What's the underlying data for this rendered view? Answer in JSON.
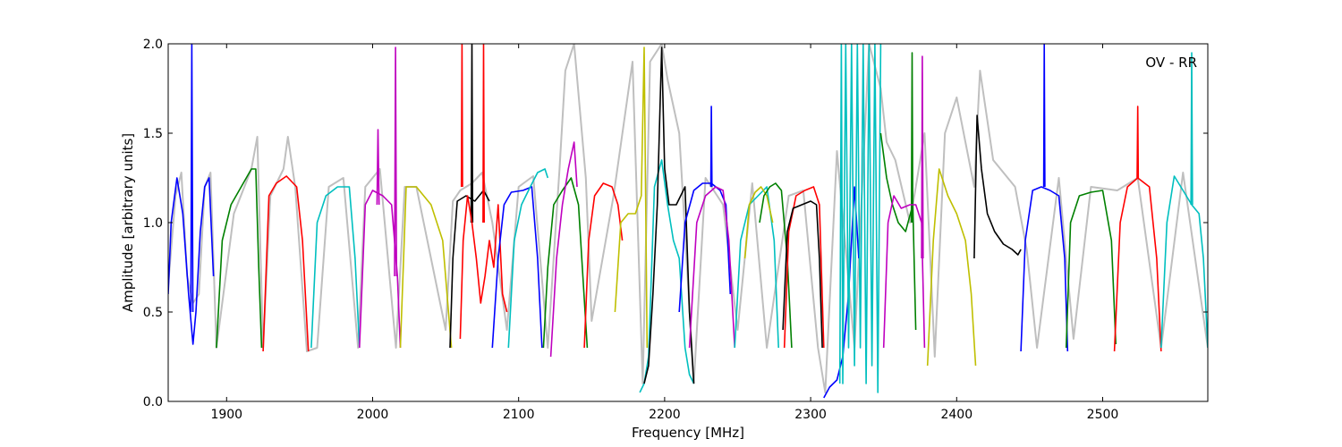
{
  "chart_data": {
    "type": "line",
    "title": "",
    "xlabel": "Frequency [MHz]",
    "ylabel": "Amplitude [arbitrary units]",
    "annotation": "OV - RR",
    "xlim": [
      1860,
      2572
    ],
    "ylim": [
      0.0,
      2.0
    ],
    "grid": false,
    "legend": "none",
    "x_ticks": [
      1900,
      2000,
      2100,
      2200,
      2300,
      2400,
      2500
    ],
    "y_ticks": [
      0.0,
      0.5,
      1.0,
      1.5,
      2.0
    ],
    "x_tick_labels": [
      "1900",
      "2000",
      "2100",
      "2200",
      "2300",
      "2400",
      "2500"
    ],
    "y_tick_labels": [
      "0.0",
      "0.5",
      "1.0",
      "1.5",
      "2.0"
    ],
    "background_trace": {
      "color": "#bfbfbf",
      "x": [
        1860,
        1865,
        1869,
        1873,
        1877,
        1881,
        1885,
        1889,
        1893,
        1905,
        1917,
        1921,
        1925,
        1930,
        1939,
        1942,
        1947,
        1955,
        1962,
        1970,
        1980,
        1990,
        1995,
        2005,
        2016,
        2022,
        2030,
        2050,
        2055,
        2060,
        2068,
        2075,
        2082,
        2092,
        2100,
        2110,
        2120,
        2128,
        2132,
        2138,
        2146,
        2150,
        2165,
        2178,
        2185,
        2190,
        2198,
        2202,
        2210,
        2220,
        2228,
        2240,
        2250,
        2260,
        2270,
        2285,
        2295,
        2305,
        2310,
        2318,
        2330,
        2340,
        2348,
        2352,
        2358,
        2368,
        2378,
        2385,
        2392,
        2400,
        2412,
        2416,
        2425,
        2440,
        2448,
        2455,
        2470,
        2480,
        2492,
        2510,
        2524,
        2540,
        2555,
        2572
      ],
      "y": [
        0.65,
        1.15,
        1.28,
        0.7,
        0.55,
        0.6,
        1.2,
        1.28,
        0.3,
        1.05,
        1.3,
        1.48,
        0.3,
        1.15,
        1.3,
        1.48,
        1.2,
        0.28,
        0.3,
        1.2,
        1.25,
        0.3,
        1.2,
        1.3,
        0.3,
        1.2,
        1.2,
        0.4,
        1.12,
        1.18,
        1.22,
        1.28,
        1.0,
        0.4,
        1.2,
        1.26,
        0.3,
        1.3,
        1.85,
        2.0,
        1.25,
        0.45,
        1.15,
        1.9,
        0.1,
        1.9,
        2.0,
        1.8,
        1.5,
        0.1,
        1.25,
        1.1,
        0.4,
        1.22,
        0.3,
        1.15,
        1.18,
        0.3,
        0.05,
        1.4,
        0.3,
        2.0,
        1.75,
        1.45,
        1.35,
        1.0,
        1.5,
        0.25,
        1.5,
        1.7,
        1.2,
        1.85,
        1.35,
        1.2,
        0.85,
        0.3,
        1.25,
        0.35,
        1.2,
        1.18,
        1.25,
        0.3,
        1.28,
        0.3
      ]
    },
    "series": [
      {
        "color": "#0000ff",
        "x": [
          1860,
          1862,
          1866,
          1870,
          1874,
          1877,
          1879,
          1882,
          1885,
          1888,
          1891
        ],
        "y": [
          0.6,
          1.0,
          1.25,
          1.05,
          0.6,
          0.32,
          0.5,
          0.95,
          1.2,
          1.25,
          0.7
        ]
      },
      {
        "color": "#0000ff",
        "x": [
          1875.5,
          1876.2,
          1876.9
        ],
        "y": [
          0.5,
          2.0,
          0.5
        ]
      },
      {
        "color": "#008000",
        "x": [
          1893,
          1897,
          1903,
          1910,
          1917,
          1920,
          1922,
          1924
        ],
        "y": [
          0.3,
          0.9,
          1.1,
          1.2,
          1.3,
          1.3,
          0.75,
          0.3
        ]
      },
      {
        "color": "#ff0000",
        "x": [
          1925,
          1929,
          1934,
          1941,
          1948,
          1952,
          1956
        ],
        "y": [
          0.28,
          1.15,
          1.22,
          1.26,
          1.2,
          0.9,
          0.28
        ]
      },
      {
        "color": "#00bfbf",
        "x": [
          1958,
          1962,
          1968,
          1976,
          1984,
          1988,
          1991
        ],
        "y": [
          0.3,
          1.0,
          1.15,
          1.2,
          1.2,
          0.8,
          0.3
        ]
      },
      {
        "color": "#bf00bf",
        "x": [
          1991,
          1995,
          2000,
          2007,
          2013,
          2017,
          2019
        ],
        "y": [
          0.3,
          1.1,
          1.18,
          1.15,
          1.1,
          0.7,
          0.3
        ]
      },
      {
        "color": "#bf00bf",
        "x": [
          2003,
          2003.7,
          2004.4
        ],
        "y": [
          1.1,
          1.52,
          1.1
        ]
      },
      {
        "color": "#bf00bf",
        "x": [
          2015,
          2015.7,
          2016.4
        ],
        "y": [
          0.7,
          1.98,
          0.7
        ]
      },
      {
        "color": "#bfbf00",
        "x": [
          2019,
          2023,
          2030,
          2040,
          2048,
          2052,
          2054
        ],
        "y": [
          0.3,
          1.2,
          1.2,
          1.1,
          0.9,
          0.5,
          0.3
        ]
      },
      {
        "color": "#000000",
        "x": [
          2053,
          2055,
          2058,
          2064,
          2070,
          2076,
          2080
        ],
        "y": [
          0.3,
          0.8,
          1.12,
          1.15,
          1.12,
          1.18,
          1.12
        ]
      },
      {
        "color": "#000000",
        "x": [
          2067.5,
          2068,
          2068.5
        ],
        "y": [
          1.0,
          2.0,
          1.0
        ]
      },
      {
        "color": "#ff0000",
        "x": [
          2060,
          2062,
          2065,
          2068,
          2071,
          2074,
          2077,
          2080,
          2083,
          2086,
          2089,
          2092
        ],
        "y": [
          0.35,
          0.9,
          1.15,
          1.0,
          0.8,
          0.55,
          0.7,
          0.9,
          0.75,
          1.1,
          0.6,
          0.5
        ]
      },
      {
        "color": "#ff0000",
        "x": [
          2060.8,
          2061.2,
          2061.6
        ],
        "y": [
          1.2,
          2.0,
          1.2
        ]
      },
      {
        "color": "#ff0000",
        "x": [
          2075.6,
          2076,
          2076.4
        ],
        "y": [
          1.0,
          2.0,
          1.0
        ]
      },
      {
        "color": "#0000ff",
        "x": [
          2082,
          2086,
          2090,
          2095,
          2103,
          2109,
          2113,
          2116
        ],
        "y": [
          0.3,
          0.8,
          1.1,
          1.17,
          1.18,
          1.2,
          0.8,
          0.3
        ]
      },
      {
        "color": "#00bfbf",
        "x": [
          2093,
          2097,
          2102,
          2108,
          2113,
          2118,
          2120
        ],
        "y": [
          0.3,
          0.9,
          1.1,
          1.2,
          1.28,
          1.3,
          1.25
        ]
      },
      {
        "color": "#008000",
        "x": [
          2117,
          2120,
          2124,
          2130,
          2136,
          2141,
          2144,
          2147
        ],
        "y": [
          0.3,
          0.75,
          1.1,
          1.18,
          1.25,
          1.1,
          0.7,
          0.3
        ]
      },
      {
        "color": "#bf00bf",
        "x": [
          2122,
          2126,
          2130,
          2134,
          2138,
          2140
        ],
        "y": [
          0.25,
          0.8,
          1.1,
          1.3,
          1.45,
          1.2
        ]
      },
      {
        "color": "#ff0000",
        "x": [
          2145,
          2148,
          2152,
          2158,
          2164,
          2168,
          2171
        ],
        "y": [
          0.3,
          0.9,
          1.15,
          1.22,
          1.2,
          1.1,
          0.9
        ]
      },
      {
        "color": "#bfbf00",
        "x": [
          2166,
          2170,
          2175,
          2180,
          2184,
          2186,
          2188
        ],
        "y": [
          0.5,
          1.0,
          1.05,
          1.05,
          1.15,
          1.98,
          0.3
        ]
      },
      {
        "color": "#00bfbf",
        "x": [
          2183,
          2186,
          2189,
          2193,
          2198,
          2202,
          2206,
          2210,
          2214,
          2217,
          2220
        ],
        "y": [
          0.05,
          0.1,
          0.25,
          1.2,
          1.35,
          1.1,
          0.9,
          0.8,
          0.3,
          0.15,
          0.1
        ]
      },
      {
        "color": "#000000",
        "x": [
          2186,
          2189,
          2192,
          2195,
          2198,
          2200,
          2203,
          2208,
          2214,
          2217,
          2220
        ],
        "y": [
          0.1,
          0.2,
          0.6,
          1.1,
          1.98,
          1.3,
          1.1,
          1.1,
          1.2,
          0.5,
          0.1
        ]
      },
      {
        "color": "#0000ff",
        "x": [
          2210,
          2214,
          2220,
          2226,
          2232,
          2238,
          2242,
          2245
        ],
        "y": [
          0.5,
          1.0,
          1.18,
          1.22,
          1.22,
          1.18,
          1.1,
          0.6
        ]
      },
      {
        "color": "#0000ff",
        "x": [
          2231.6,
          2232,
          2232.4
        ],
        "y": [
          1.2,
          1.65,
          1.2
        ]
      },
      {
        "color": "#bf00bf",
        "x": [
          2217,
          2222,
          2228,
          2235,
          2240,
          2244,
          2248
        ],
        "y": [
          0.3,
          1.0,
          1.15,
          1.2,
          1.18,
          0.9,
          0.3
        ]
      },
      {
        "color": "#00bfbf",
        "x": [
          2248,
          2252,
          2258,
          2264,
          2270,
          2275,
          2278
        ],
        "y": [
          0.3,
          0.9,
          1.1,
          1.15,
          1.2,
          0.9,
          0.3
        ]
      },
      {
        "color": "#bfbf00",
        "x": [
          2255,
          2258,
          2262,
          2266,
          2270,
          2274
        ],
        "y": [
          0.8,
          1.1,
          1.17,
          1.2,
          1.15,
          1.0
        ]
      },
      {
        "color": "#008000",
        "x": [
          2265,
          2268,
          2272,
          2276,
          2280,
          2284,
          2287
        ],
        "y": [
          1.0,
          1.15,
          1.2,
          1.22,
          1.18,
          0.8,
          0.3
        ]
      },
      {
        "color": "#ff0000",
        "x": [
          2282,
          2285,
          2290,
          2296,
          2302,
          2306,
          2309
        ],
        "y": [
          0.3,
          0.95,
          1.15,
          1.18,
          1.2,
          1.1,
          0.3
        ]
      },
      {
        "color": "#000000",
        "x": [
          2281,
          2284,
          2288,
          2294,
          2300,
          2304,
          2306,
          2308
        ],
        "y": [
          0.4,
          0.95,
          1.08,
          1.1,
          1.12,
          1.1,
          0.8,
          0.3
        ]
      },
      {
        "color": "#0000ff",
        "x": [
          2309,
          2313,
          2318,
          2322,
          2326,
          2330,
          2333
        ],
        "y": [
          0.02,
          0.08,
          0.12,
          0.25,
          0.6,
          1.2,
          0.8
        ]
      },
      {
        "color": "#00bfbf",
        "x": [
          2320,
          2321,
          2322,
          2324,
          2326,
          2328,
          2330,
          2332,
          2334,
          2336,
          2338,
          2340,
          2342,
          2344,
          2346,
          2348
        ],
        "y": [
          0.1,
          2.0,
          0.1,
          2.0,
          0.3,
          2.0,
          0.2,
          2.0,
          0.3,
          2.0,
          0.1,
          2.0,
          0.2,
          2.0,
          0.05,
          2.0
        ]
      },
      {
        "color": "#008000",
        "x": [
          2348,
          2352,
          2356,
          2360,
          2365,
          2370,
          2372
        ],
        "y": [
          1.5,
          1.25,
          1.1,
          1.0,
          0.95,
          1.1,
          0.4
        ]
      },
      {
        "color": "#008000",
        "x": [
          2369,
          2369.5,
          2370
        ],
        "y": [
          1.0,
          1.95,
          1.0
        ]
      },
      {
        "color": "#bf00bf",
        "x": [
          2350,
          2353,
          2357,
          2362,
          2368,
          2372,
          2376,
          2378
        ],
        "y": [
          0.3,
          1.0,
          1.15,
          1.08,
          1.1,
          1.1,
          1.0,
          0.3
        ]
      },
      {
        "color": "#bf00bf",
        "x": [
          2376,
          2376.5,
          2377
        ],
        "y": [
          0.8,
          1.93,
          0.8
        ]
      },
      {
        "color": "#bfbf00",
        "x": [
          2380,
          2384,
          2388,
          2394,
          2400,
          2406,
          2410,
          2413
        ],
        "y": [
          0.2,
          0.9,
          1.3,
          1.15,
          1.05,
          0.9,
          0.6,
          0.2
        ]
      },
      {
        "color": "#000000",
        "x": [
          2412,
          2414,
          2417,
          2421,
          2426,
          2432,
          2438,
          2442,
          2444
        ],
        "y": [
          0.8,
          1.6,
          1.3,
          1.05,
          0.95,
          0.88,
          0.85,
          0.82,
          0.85
        ]
      },
      {
        "color": "#0000ff",
        "x": [
          2444,
          2447,
          2452,
          2458,
          2464,
          2470,
          2474,
          2476
        ],
        "y": [
          0.28,
          0.9,
          1.18,
          1.2,
          1.18,
          1.15,
          0.8,
          0.28
        ]
      },
      {
        "color": "#0000ff",
        "x": [
          2459.6,
          2460,
          2460.4
        ],
        "y": [
          1.2,
          2.0,
          1.2
        ]
      },
      {
        "color": "#008000",
        "x": [
          2475,
          2478,
          2484,
          2492,
          2500,
          2506,
          2509
        ],
        "y": [
          0.3,
          1.0,
          1.15,
          1.17,
          1.18,
          0.9,
          0.32
        ]
      },
      {
        "color": "#ff0000",
        "x": [
          2508,
          2512,
          2517,
          2524,
          2532,
          2537,
          2540
        ],
        "y": [
          0.28,
          1.0,
          1.2,
          1.25,
          1.2,
          0.8,
          0.28
        ]
      },
      {
        "color": "#ff0000",
        "x": [
          2523.6,
          2524,
          2524.4
        ],
        "y": [
          1.25,
          1.65,
          1.25
        ]
      },
      {
        "color": "#00bfbf",
        "x": [
          2540,
          2544,
          2549,
          2555,
          2561,
          2566,
          2569,
          2572
        ],
        "y": [
          0.3,
          1.0,
          1.26,
          1.18,
          1.1,
          1.05,
          0.8,
          0.3
        ]
      },
      {
        "color": "#00bfbf",
        "x": [
          2560.5,
          2561,
          2561.5
        ],
        "y": [
          1.1,
          1.95,
          1.1
        ]
      }
    ]
  }
}
